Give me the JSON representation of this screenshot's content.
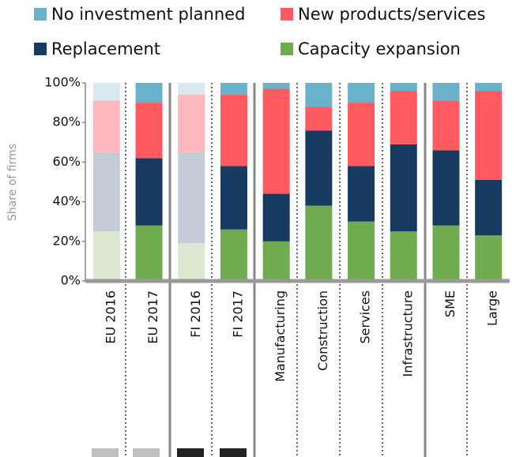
{
  "chart_data": {
    "type": "stacked_bar",
    "y_label": "Share of firms",
    "categories": [
      "EU 2016",
      "EU 2017",
      "FI 2016",
      "FI 2017",
      "Manufacturing",
      "Construction",
      "Services",
      "Infrastructure",
      "SME",
      "Large"
    ],
    "faded": [
      0,
      2
    ],
    "series": [
      {
        "name": "Capacity expansion",
        "color": "#6fab4f",
        "faded_color": "#dce8d0",
        "values": [
          25,
          28,
          19,
          26,
          20,
          38,
          30,
          25,
          28,
          23
        ]
      },
      {
        "name": "Replacement",
        "color": "#173a60",
        "faded_color": "#c4ccd8",
        "values": [
          40,
          34,
          46,
          32,
          24,
          38,
          28,
          44,
          38,
          28
        ]
      },
      {
        "name": "New products/services",
        "color": "#ff5a5f",
        "faded_color": "#ffb9bc",
        "values": [
          26,
          28,
          29,
          36,
          53,
          12,
          32,
          27,
          25,
          45
        ]
      },
      {
        "name": "No investment planned",
        "color": "#6ab2cb",
        "faded_color": "#d8e9f1",
        "values": [
          9,
          10,
          6,
          6,
          3,
          12,
          10,
          4,
          9,
          4
        ]
      }
    ],
    "ylim": [
      0,
      100
    ],
    "yticks": [
      {
        "value": 0,
        "label": "0%"
      },
      {
        "value": 20,
        "label": "20%"
      },
      {
        "value": 40,
        "label": "40%"
      },
      {
        "value": 60,
        "label": "60%"
      },
      {
        "value": 80,
        "label": "80%"
      },
      {
        "value": 100,
        "label": "100%"
      }
    ]
  }
}
